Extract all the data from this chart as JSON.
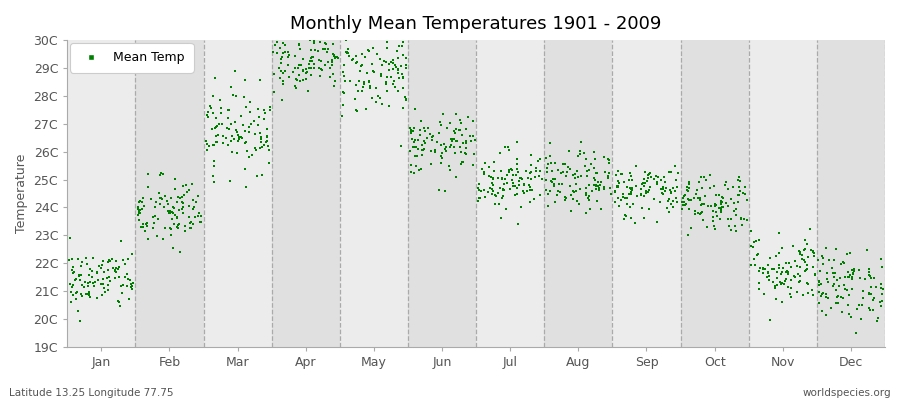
{
  "title": "Monthly Mean Temperatures 1901 - 2009",
  "ylabel": "Temperature",
  "ylim": [
    19,
    30
  ],
  "yticks": [
    19,
    20,
    21,
    22,
    23,
    24,
    25,
    26,
    27,
    28,
    29,
    30
  ],
  "ytick_labels": [
    "19C",
    "20C",
    "21C",
    "22C",
    "23C",
    "24C",
    "25C",
    "26C",
    "27C",
    "28C",
    "29C",
    "30C"
  ],
  "month_labels": [
    "Jan",
    "Feb",
    "Mar",
    "Apr",
    "May",
    "Jun",
    "Jul",
    "Aug",
    "Sep",
    "Oct",
    "Nov",
    "Dec"
  ],
  "dot_color": "#008000",
  "fig_bg_color": "#ffffff",
  "band_colors": [
    "#ececec",
    "#e0e0e0"
  ],
  "title_fontsize": 13,
  "label_fontsize": 9,
  "tick_fontsize": 9,
  "caption_left": "Latitude 13.25 Longitude 77.75",
  "caption_right": "worldspecies.org",
  "legend_label": "Mean Temp",
  "n_years": 109,
  "month_mean_temps": [
    21.4,
    23.8,
    26.8,
    29.3,
    28.8,
    26.2,
    25.0,
    24.9,
    24.6,
    24.2,
    21.8,
    21.2
  ],
  "month_std_temps": [
    0.55,
    0.65,
    0.75,
    0.55,
    0.75,
    0.55,
    0.55,
    0.55,
    0.5,
    0.55,
    0.65,
    0.65
  ],
  "seed": 42
}
